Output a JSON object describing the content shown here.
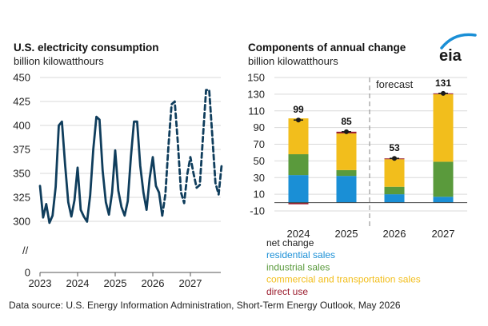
{
  "colors": {
    "line": "#0f3d5c",
    "residential": "#1a8fd6",
    "industrial": "#5a9a3c",
    "commercial": "#f2be1c",
    "direct_use": "#9b1d2e",
    "net_change": "#1a1a1a",
    "logo_arc": "#1a8fd6"
  },
  "logo_text": "eia",
  "source": "Data source: U.S. Energy Information Administration, Short-Term Energy Outlook, May 2026",
  "chart_data": [
    {
      "type": "line",
      "title": "U.S. electricity consumption",
      "subtitle": "billion kilowatthours",
      "axis_break_label": "//",
      "yticks": [
        0,
        300,
        325,
        350,
        375,
        400,
        425,
        450
      ],
      "ylim": [
        0,
        450
      ],
      "axis_break": [
        0,
        287.5
      ],
      "x_tick_labels": [
        "2023",
        "2024",
        "2025",
        "2026",
        "2027"
      ],
      "series": [
        {
          "style": "solid",
          "values": [
            337,
            304,
            318,
            291,
            306,
            336,
            400,
            404,
            360,
            320,
            305,
            322,
            356,
            312,
            305,
            298,
            327,
            375,
            409,
            406,
            353,
            320,
            307,
            330,
            374,
            332,
            315,
            306,
            321,
            367,
            404,
            404,
            358,
            330,
            312,
            345,
            367,
            337,
            330,
            306
          ]
        },
        {
          "style": "dashed",
          "start_index": 39,
          "values": [
            306,
            328,
            379,
            422,
            425,
            382,
            330,
            319,
            349,
            367,
            350,
            335,
            338,
            388,
            437,
            437,
            389,
            340,
            328,
            360
          ]
        }
      ]
    },
    {
      "type": "bar",
      "stacked": true,
      "title": "Components of annual change",
      "subtitle": "billion kilowatthours",
      "annotation": "forecast",
      "categories": [
        "2024",
        "2025",
        "2026",
        "2027"
      ],
      "yticks": [
        -10,
        10,
        30,
        50,
        70,
        90,
        110,
        130,
        150
      ],
      "ylim": [
        -10,
        150
      ],
      "series": [
        {
          "name": "residential sales",
          "color_key": "residential",
          "values": [
            33,
            32,
            10,
            7
          ]
        },
        {
          "name": "industrial sales",
          "color_key": "industrial",
          "values": [
            25,
            7,
            9,
            42
          ]
        },
        {
          "name": "commercial and transportation sales",
          "color_key": "commercial",
          "values": [
            43,
            44,
            33,
            81
          ]
        },
        {
          "name": "direct use",
          "color_key": "direct_use",
          "values": [
            -2,
            2,
            1,
            1
          ]
        }
      ],
      "net_change": {
        "name": "net change",
        "values": [
          99,
          85,
          53,
          131
        ],
        "labels": [
          "99",
          "85",
          "53",
          "131"
        ]
      }
    }
  ]
}
